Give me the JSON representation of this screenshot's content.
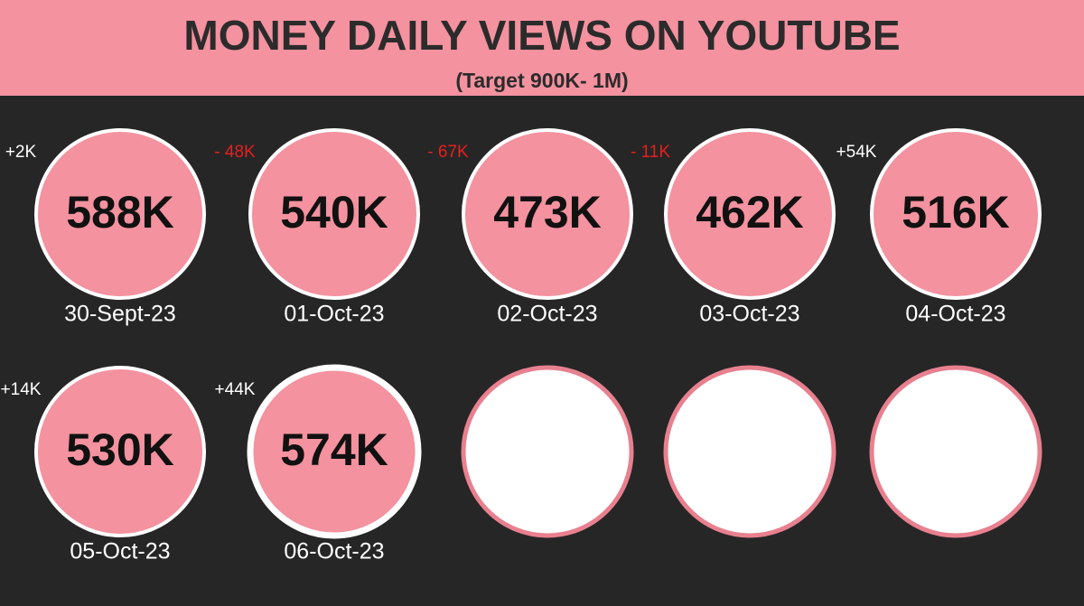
{
  "header": {
    "title": "MONEY DAILY VIEWS ON YOUTUBE",
    "subtitle": "(Target 900K- 1M)"
  },
  "days": [
    {
      "value": "588K",
      "date": "30-Sept-23",
      "change": "+2K"
    },
    {
      "value": "540K",
      "date": "01-Oct-23",
      "change": "- 48K"
    },
    {
      "value": "473K",
      "date": "02-Oct-23",
      "change": "- 67K"
    },
    {
      "value": "462K",
      "date": "03-Oct-23",
      "change": "- 11K"
    },
    {
      "value": "516K",
      "date": "04-Oct-23",
      "change": "+54K"
    },
    {
      "value": "530K",
      "date": "05-Oct-23",
      "change": "+14K"
    },
    {
      "value": "574K",
      "date": "06-Oct-23",
      "change": "+44K"
    }
  ]
}
